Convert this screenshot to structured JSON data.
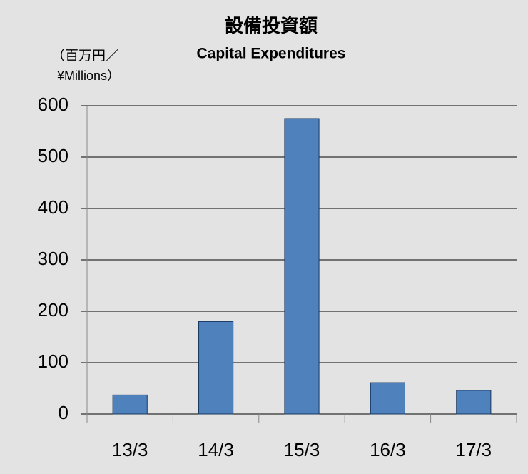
{
  "chart_data": {
    "type": "bar",
    "title": "設備投資額",
    "subtitle": "Capital Expenditures",
    "ylabel_lines": [
      "（百万円／",
      "¥Millions）"
    ],
    "categories": [
      "13/3",
      "14/3",
      "15/3",
      "16/3",
      "17/3"
    ],
    "values": [
      37,
      180,
      575,
      61,
      46
    ],
    "color": "#4f81bd",
    "ylim": [
      0,
      600
    ],
    "yticks": [
      0,
      100,
      200,
      300,
      400,
      500,
      600
    ],
    "grid": true
  }
}
